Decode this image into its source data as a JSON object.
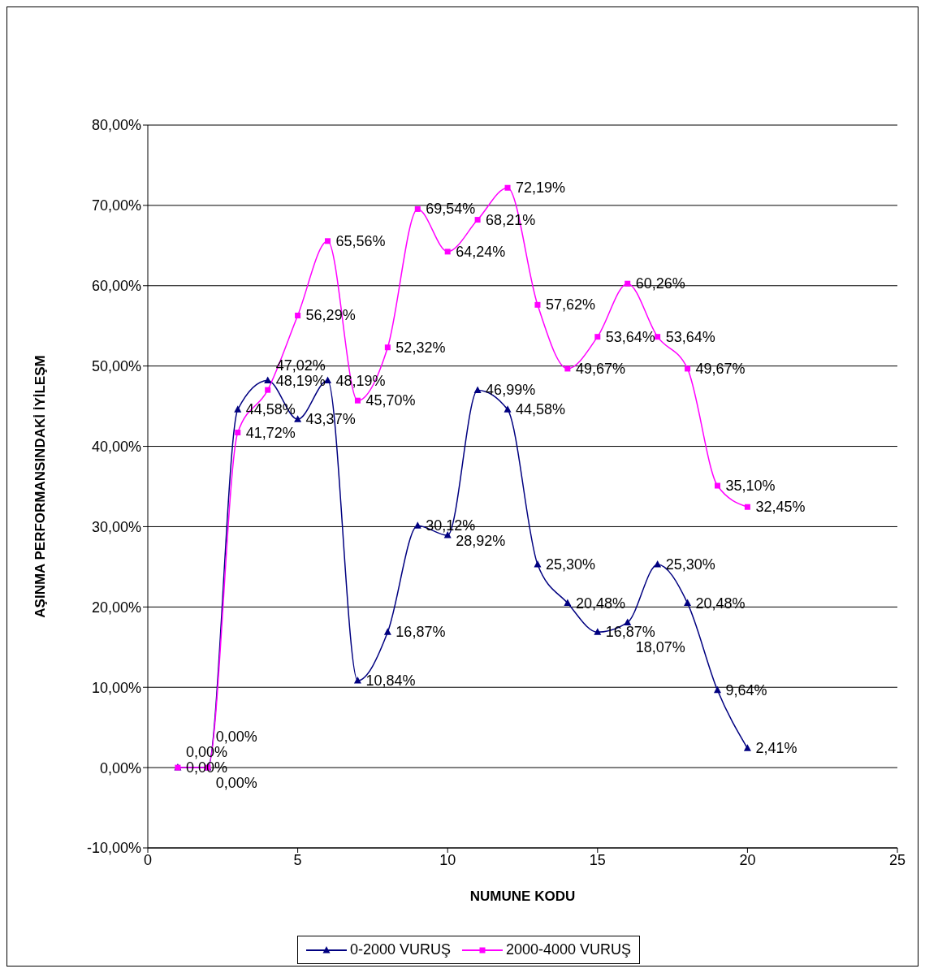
{
  "chart_data": {
    "type": "line",
    "xlabel": "NUMUNE KODU",
    "ylabel": "AŞINMA PERFORMANSINDAKİ İYİLEŞM",
    "x": [
      1,
      2,
      3,
      4,
      5,
      6,
      7,
      8,
      9,
      10,
      11,
      12,
      13,
      14,
      15,
      16,
      17,
      18,
      19,
      20
    ],
    "series": [
      {
        "name": "0-2000 VURUŞ",
        "color": "#000080",
        "marker": "triangle",
        "values": [
          0,
          0,
          44.58,
          48.19,
          43.37,
          48.19,
          10.84,
          16.87,
          30.12,
          28.92,
          46.99,
          44.58,
          25.3,
          20.48,
          16.87,
          18.07,
          25.3,
          20.48,
          9.64,
          2.41
        ],
        "value_labels": [
          "0,00%",
          "0,00%",
          "44,58%",
          "48,19%",
          "43,37%",
          "48,19%",
          "10,84%",
          "16,87%",
          "30,12%",
          "28,92%",
          "46,99%",
          "44,58%",
          "25,30%",
          "20,48%",
          "16,87%",
          "18,07%",
          "25,30%",
          "20,48%",
          "9,64%",
          "2,41%"
        ]
      },
      {
        "name": "2000-4000 VURUŞ",
        "color": "#ff00ff",
        "marker": "square",
        "values": [
          0,
          0,
          41.72,
          47.02,
          56.29,
          65.56,
          45.7,
          52.32,
          69.54,
          64.24,
          68.21,
          72.19,
          57.62,
          49.67,
          53.64,
          60.26,
          53.64,
          49.67,
          35.1,
          32.45
        ],
        "value_labels": [
          "0,00%",
          "0,00%",
          "41,72%",
          "47,02%",
          "56,29%",
          "65,56%",
          "45,70%",
          "52,32%",
          "69,54%",
          "64,24%",
          "68,21%",
          "72,19%",
          "57,62%",
          "49,67%",
          "53,64%",
          "60,26%",
          "53,64%",
          "49,67%",
          "35,10%",
          "32,45%"
        ]
      }
    ],
    "xlim": [
      0,
      25
    ],
    "xticks": [
      0,
      5,
      10,
      15,
      20,
      25
    ],
    "ylim": [
      -10,
      80
    ],
    "yticks": [
      {
        "value": -10,
        "label": "-10,00%"
      },
      {
        "value": 0,
        "label": "0,00%"
      },
      {
        "value": 10,
        "label": "10,00%"
      },
      {
        "value": 20,
        "label": "20,00%"
      },
      {
        "value": 30,
        "label": "30,00%"
      },
      {
        "value": 40,
        "label": "40,00%"
      },
      {
        "value": 50,
        "label": "50,00%"
      },
      {
        "value": 60,
        "label": "60,00%"
      },
      {
        "value": 70,
        "label": "70,00%"
      },
      {
        "value": 80,
        "label": "80,00%"
      }
    ],
    "grid": "y",
    "legend": "bottom",
    "line_style": "solid"
  }
}
